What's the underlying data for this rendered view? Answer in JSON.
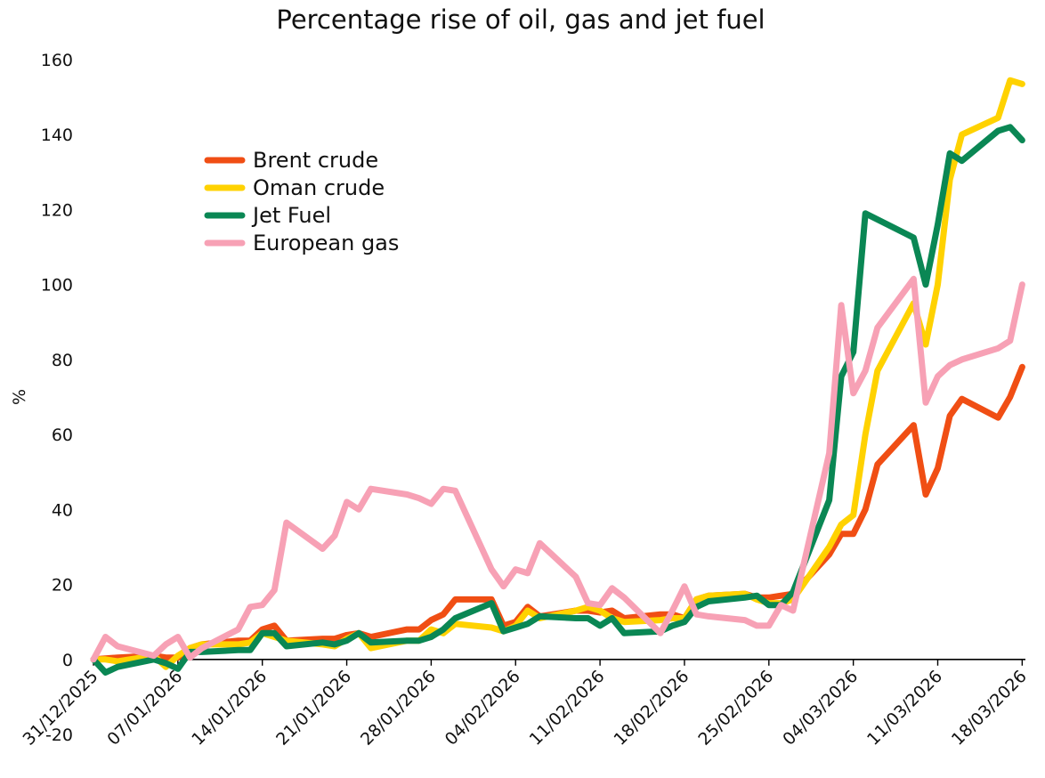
{
  "chart_data": {
    "type": "line",
    "title": "Percentage rise of oil, gas and jet fuel",
    "xlabel": "",
    "ylabel": "%",
    "ylim": [
      -20,
      160
    ],
    "yticks": [
      -20,
      0,
      20,
      40,
      60,
      80,
      100,
      120,
      140,
      160
    ],
    "x_start": "31/12/2025",
    "x_end": "18/03/2026",
    "xticks": [
      "31/12/2025",
      "07/01/2026",
      "14/01/2026",
      "21/01/2026",
      "28/01/2026",
      "04/02/2026",
      "11/02/2026",
      "18/02/2026",
      "25/02/2026",
      "04/03/2026",
      "11/03/2026",
      "18/03/2026"
    ],
    "grid": false,
    "legend": "upper-left",
    "series": [
      {
        "name": "Brent crude",
        "color": "#f04e14",
        "points": [
          [
            "31/12/2025",
            0
          ],
          [
            "02/01/2026",
            0.5
          ],
          [
            "05/01/2026",
            1
          ],
          [
            "06/01/2026",
            0.5
          ],
          [
            "07/01/2026",
            0.5
          ],
          [
            "08/01/2026",
            3
          ],
          [
            "09/01/2026",
            4
          ],
          [
            "12/01/2026",
            5
          ],
          [
            "13/01/2026",
            5
          ],
          [
            "14/01/2026",
            8
          ],
          [
            "15/01/2026",
            9
          ],
          [
            "16/01/2026",
            5
          ],
          [
            "19/01/2026",
            5.5
          ],
          [
            "20/01/2026",
            5.5
          ],
          [
            "21/01/2026",
            6.5
          ],
          [
            "22/01/2026",
            7
          ],
          [
            "23/01/2026",
            6
          ],
          [
            "26/01/2026",
            8
          ],
          [
            "27/01/2026",
            8
          ],
          [
            "28/01/2026",
            10.5
          ],
          [
            "29/01/2026",
            12
          ],
          [
            "30/01/2026",
            16
          ],
          [
            "02/02/2026",
            16
          ],
          [
            "03/02/2026",
            9
          ],
          [
            "04/02/2026",
            10
          ],
          [
            "05/02/2026",
            14
          ],
          [
            "06/02/2026",
            11.5
          ],
          [
            "09/02/2026",
            13
          ],
          [
            "10/02/2026",
            13
          ],
          [
            "11/02/2026",
            12.5
          ],
          [
            "12/02/2026",
            13
          ],
          [
            "13/02/2026",
            11
          ],
          [
            "16/02/2026",
            12
          ],
          [
            "17/02/2026",
            12
          ],
          [
            "18/02/2026",
            11
          ],
          [
            "19/02/2026",
            16
          ],
          [
            "20/02/2026",
            17
          ],
          [
            "23/02/2026",
            17.5
          ],
          [
            "24/02/2026",
            16.5
          ],
          [
            "25/02/2026",
            16.5
          ],
          [
            "26/02/2026",
            17
          ],
          [
            "27/02/2026",
            17.5
          ],
          [
            "02/03/2026",
            28
          ],
          [
            "03/03/2026",
            33.5
          ],
          [
            "04/03/2026",
            33.5
          ],
          [
            "05/03/2026",
            40
          ],
          [
            "06/03/2026",
            52
          ],
          [
            "09/03/2026",
            62.5
          ],
          [
            "10/03/2026",
            44
          ],
          [
            "11/03/2026",
            51
          ],
          [
            "12/03/2026",
            65
          ],
          [
            "13/03/2026",
            69.5
          ],
          [
            "16/03/2026",
            64.5
          ],
          [
            "17/03/2026",
            70
          ],
          [
            "18/03/2026",
            78
          ]
        ]
      },
      {
        "name": "Oman crude",
        "color": "#ffd200",
        "points": [
          [
            "31/12/2025",
            0
          ],
          [
            "01/01/2026",
            0
          ],
          [
            "02/01/2026",
            -0.5
          ],
          [
            "05/01/2026",
            1
          ],
          [
            "06/01/2026",
            -2
          ],
          [
            "07/01/2026",
            1
          ],
          [
            "08/01/2026",
            3
          ],
          [
            "09/01/2026",
            4
          ],
          [
            "12/01/2026",
            4
          ],
          [
            "13/01/2026",
            4.5
          ],
          [
            "14/01/2026",
            7
          ],
          [
            "15/01/2026",
            6
          ],
          [
            "16/01/2026",
            5
          ],
          [
            "19/01/2026",
            4
          ],
          [
            "20/01/2026",
            3.5
          ],
          [
            "21/01/2026",
            5.5
          ],
          [
            "22/01/2026",
            7
          ],
          [
            "23/01/2026",
            3
          ],
          [
            "26/01/2026",
            5
          ],
          [
            "27/01/2026",
            5
          ],
          [
            "28/01/2026",
            8
          ],
          [
            "29/01/2026",
            7
          ],
          [
            "30/01/2026",
            9.5
          ],
          [
            "02/02/2026",
            8.5
          ],
          [
            "03/02/2026",
            7.5
          ],
          [
            "04/02/2026",
            9
          ],
          [
            "05/02/2026",
            13
          ],
          [
            "06/02/2026",
            11
          ],
          [
            "09/02/2026",
            13
          ],
          [
            "10/02/2026",
            14
          ],
          [
            "11/02/2026",
            13
          ],
          [
            "12/02/2026",
            11
          ],
          [
            "13/02/2026",
            10
          ],
          [
            "16/02/2026",
            10.5
          ],
          [
            "17/02/2026",
            11
          ],
          [
            "18/02/2026",
            11
          ],
          [
            "19/02/2026",
            16
          ],
          [
            "20/02/2026",
            17
          ],
          [
            "23/02/2026",
            17.5
          ],
          [
            "24/02/2026",
            16
          ],
          [
            "25/02/2026",
            15
          ],
          [
            "26/02/2026",
            15
          ],
          [
            "27/02/2026",
            16
          ],
          [
            "02/03/2026",
            30
          ],
          [
            "03/03/2026",
            36
          ],
          [
            "04/03/2026",
            38.5
          ],
          [
            "05/03/2026",
            60
          ],
          [
            "06/03/2026",
            77
          ],
          [
            "09/03/2026",
            95
          ],
          [
            "10/03/2026",
            84
          ],
          [
            "11/03/2026",
            100
          ],
          [
            "12/03/2026",
            128
          ],
          [
            "13/03/2026",
            140
          ],
          [
            "16/03/2026",
            144.5
          ],
          [
            "17/03/2026",
            154.5
          ],
          [
            "18/03/2026",
            153.5
          ]
        ]
      },
      {
        "name": "Jet Fuel",
        "color": "#0a8754",
        "points": [
          [
            "31/12/2025",
            0
          ],
          [
            "01/01/2026",
            -3.5
          ],
          [
            "02/01/2026",
            -2
          ],
          [
            "05/01/2026",
            0
          ],
          [
            "06/01/2026",
            -1
          ],
          [
            "07/01/2026",
            -2.5
          ],
          [
            "08/01/2026",
            2
          ],
          [
            "09/01/2026",
            2
          ],
          [
            "12/01/2026",
            2.5
          ],
          [
            "13/01/2026",
            2.5
          ],
          [
            "14/01/2026",
            7
          ],
          [
            "15/01/2026",
            7
          ],
          [
            "16/01/2026",
            3.5
          ],
          [
            "19/01/2026",
            4.5
          ],
          [
            "20/01/2026",
            4
          ],
          [
            "21/01/2026",
            5
          ],
          [
            "22/01/2026",
            7
          ],
          [
            "23/01/2026",
            4.5
          ],
          [
            "26/01/2026",
            5
          ],
          [
            "27/01/2026",
            5
          ],
          [
            "28/01/2026",
            6
          ],
          [
            "29/01/2026",
            8
          ],
          [
            "30/01/2026",
            11
          ],
          [
            "02/02/2026",
            15
          ],
          [
            "03/02/2026",
            7.5
          ],
          [
            "04/02/2026",
            8.5
          ],
          [
            "05/02/2026",
            9.5
          ],
          [
            "06/02/2026",
            11.5
          ],
          [
            "09/02/2026",
            11
          ],
          [
            "10/02/2026",
            11
          ],
          [
            "11/02/2026",
            9
          ],
          [
            "12/02/2026",
            11
          ],
          [
            "13/02/2026",
            7
          ],
          [
            "16/02/2026",
            7.5
          ],
          [
            "17/02/2026",
            9
          ],
          [
            "18/02/2026",
            10
          ],
          [
            "19/02/2026",
            14
          ],
          [
            "20/02/2026",
            15.5
          ],
          [
            "23/02/2026",
            16.5
          ],
          [
            "24/02/2026",
            17
          ],
          [
            "25/02/2026",
            14.5
          ],
          [
            "26/02/2026",
            14.5
          ],
          [
            "27/02/2026",
            18
          ],
          [
            "02/03/2026",
            42.5
          ],
          [
            "03/03/2026",
            75.5
          ],
          [
            "04/03/2026",
            82
          ],
          [
            "05/03/2026",
            119
          ],
          [
            "09/03/2026",
            112.5
          ],
          [
            "10/03/2026",
            100
          ],
          [
            "11/03/2026",
            116
          ],
          [
            "12/03/2026",
            135
          ],
          [
            "13/03/2026",
            133
          ],
          [
            "16/03/2026",
            141
          ],
          [
            "17/03/2026",
            142
          ],
          [
            "18/03/2026",
            138.5
          ]
        ]
      },
      {
        "name": "European gas",
        "color": "#f7a1b5",
        "points": [
          [
            "31/12/2025",
            0
          ],
          [
            "01/01/2026",
            6
          ],
          [
            "02/01/2026",
            3.5
          ],
          [
            "05/01/2026",
            1
          ],
          [
            "06/01/2026",
            4
          ],
          [
            "07/01/2026",
            6
          ],
          [
            "08/01/2026",
            0.5
          ],
          [
            "09/01/2026",
            3
          ],
          [
            "12/01/2026",
            8
          ],
          [
            "13/01/2026",
            14
          ],
          [
            "14/01/2026",
            14.5
          ],
          [
            "15/01/2026",
            18.5
          ],
          [
            "16/01/2026",
            36.5
          ],
          [
            "19/01/2026",
            29.5
          ],
          [
            "20/01/2026",
            33
          ],
          [
            "21/01/2026",
            42
          ],
          [
            "22/01/2026",
            40
          ],
          [
            "23/01/2026",
            45.5
          ],
          [
            "26/01/2026",
            44
          ],
          [
            "27/01/2026",
            43
          ],
          [
            "28/01/2026",
            41.5
          ],
          [
            "29/01/2026",
            45.5
          ],
          [
            "30/01/2026",
            45
          ],
          [
            "02/02/2026",
            24
          ],
          [
            "03/02/2026",
            19.5
          ],
          [
            "04/02/2026",
            24
          ],
          [
            "05/02/2026",
            23
          ],
          [
            "06/02/2026",
            31
          ],
          [
            "09/02/2026",
            22
          ],
          [
            "10/02/2026",
            15
          ],
          [
            "11/02/2026",
            14.5
          ],
          [
            "12/02/2026",
            19
          ],
          [
            "13/02/2026",
            16.5
          ],
          [
            "16/02/2026",
            7
          ],
          [
            "17/02/2026",
            13
          ],
          [
            "18/02/2026",
            19.5
          ],
          [
            "19/02/2026",
            12
          ],
          [
            "20/02/2026",
            11.5
          ],
          [
            "23/02/2026",
            10.5
          ],
          [
            "24/02/2026",
            9
          ],
          [
            "25/02/2026",
            9
          ],
          [
            "26/02/2026",
            14.5
          ],
          [
            "27/02/2026",
            13
          ],
          [
            "02/03/2026",
            55
          ],
          [
            "03/03/2026",
            94.5
          ],
          [
            "04/03/2026",
            71
          ],
          [
            "05/03/2026",
            77
          ],
          [
            "06/03/2026",
            88.5
          ],
          [
            "09/03/2026",
            101.5
          ],
          [
            "10/03/2026",
            68.5
          ],
          [
            "11/03/2026",
            75.5
          ],
          [
            "12/03/2026",
            78.5
          ],
          [
            "13/03/2026",
            80
          ],
          [
            "16/03/2026",
            83
          ],
          [
            "17/03/2026",
            85
          ],
          [
            "18/03/2026",
            100
          ]
        ]
      }
    ]
  }
}
